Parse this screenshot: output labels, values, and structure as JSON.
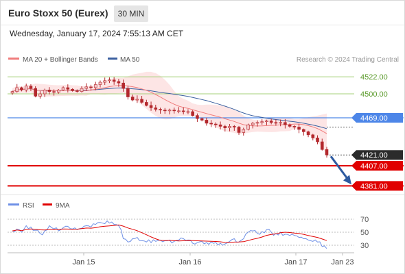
{
  "header": {
    "title": "Euro Stoxx 50 (Eurex)",
    "timeframe": "30 MIN",
    "datetime": "Wednesday, January 17, 2024 7:55:13 AM CET"
  },
  "credit": "Research © 2024 Trading Central",
  "colors": {
    "ma20": "#f07c7c",
    "ma50": "#3a5f9f",
    "bollinger_band": "#fde1e1",
    "support_line": "#e00000",
    "pivot_line": "#4d86e8",
    "resistance_line": "#a6d07a",
    "candle": "#b3282d",
    "rsi": "#6d8fe6",
    "rsi_ma": "#e00000",
    "arrow": "#2d5aa0",
    "last_price_tag": "#2b2b2b"
  },
  "chart_data": [
    {
      "type": "candlestick",
      "legend": [
        {
          "name": "MA 20 + Bollinger Bands",
          "color": "#f07c7c"
        },
        {
          "name": "MA 50",
          "color": "#3a5f9f"
        }
      ],
      "ylim": [
        4370,
        4550
      ],
      "levels": [
        {
          "value": 4522.0,
          "label": "4522.00",
          "kind": "resistance"
        },
        {
          "value": 4500.0,
          "label": "4500.00",
          "kind": "resistance"
        },
        {
          "value": 4469.0,
          "label": "4469.00",
          "kind": "pivot"
        },
        {
          "value": 4421.0,
          "label": "4421.00",
          "kind": "last"
        },
        {
          "value": 4407.0,
          "label": "4407.00",
          "kind": "support"
        },
        {
          "value": 4381.0,
          "label": "4381.00",
          "kind": "support"
        }
      ],
      "x_ticks": [
        "Jan 15",
        "Jan 16",
        "Jan 17",
        "Jan 23"
      ],
      "close": [
        4503,
        4508,
        4505,
        4510,
        4507,
        4497,
        4500,
        4505,
        4503,
        4502,
        4505,
        4508,
        4506,
        4504,
        4503,
        4507,
        4509,
        4508,
        4512,
        4515,
        4517,
        4518,
        4516,
        4514,
        4507,
        4496,
        4492,
        4493,
        4489,
        4485,
        4482,
        4480,
        4479,
        4478,
        4479,
        4478,
        4478,
        4477,
        4477,
        4472,
        4468,
        4466,
        4462,
        4461,
        4460,
        4458,
        4456,
        4458,
        4457,
        4450,
        4454,
        4460,
        4462,
        4463,
        4464,
        4465,
        4463,
        4462,
        4463,
        4460,
        4458,
        4457,
        4454,
        4451,
        4447,
        4443,
        4438,
        4428,
        4421
      ],
      "projection": {
        "from": 4421,
        "to": 4381
      }
    },
    {
      "type": "line",
      "legend": [
        {
          "name": "RSI",
          "color": "#6d8fe6"
        },
        {
          "name": "9MA",
          "color": "#e00000"
        }
      ],
      "ylim": [
        20,
        80
      ],
      "y_ticks": [
        "70",
        "50",
        "30"
      ],
      "rsi": [
        52,
        55,
        50,
        60,
        58,
        53,
        48,
        52,
        60,
        55,
        52,
        57,
        59,
        55,
        54,
        56,
        60,
        58,
        62,
        65,
        63,
        64,
        62,
        60,
        40,
        35,
        40,
        42,
        37,
        35,
        34,
        36,
        38,
        37,
        38,
        36,
        38,
        40,
        38,
        33,
        34,
        36,
        34,
        35,
        34,
        33,
        32,
        36,
        40,
        35,
        40,
        50,
        52,
        48,
        51,
        54,
        50,
        48,
        50,
        47,
        45,
        45,
        42,
        40,
        38,
        36,
        35,
        28,
        25
      ]
    }
  ]
}
